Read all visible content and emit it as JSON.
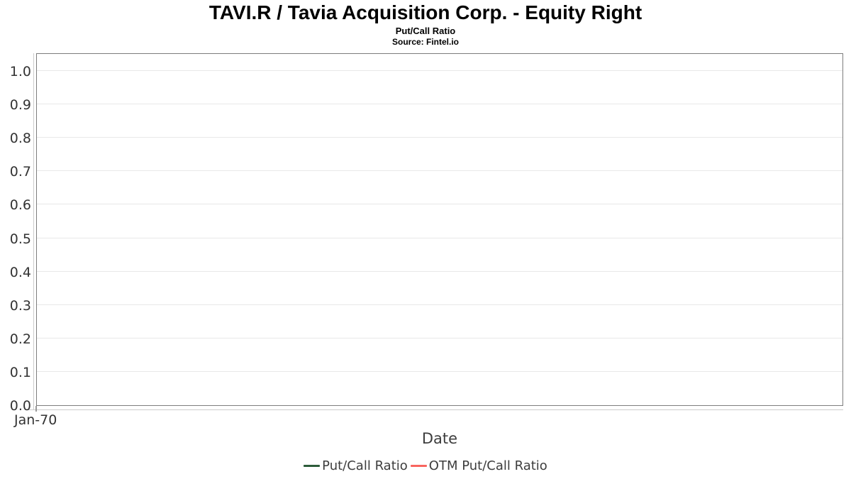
{
  "header": {
    "title": "TAVI.R / Tavia Acquisition Corp. - Equity Right",
    "subtitle": "Put/Call Ratio",
    "source": "Source: Fintel.io"
  },
  "chart_data": {
    "type": "line",
    "title": "TAVI.R / Tavia Acquisition Corp. - Equity Right",
    "subtitle": "Put/Call Ratio",
    "source_note": "Source: Fintel.io",
    "xlabel": "Date",
    "ylabel": "",
    "ylim": [
      0.0,
      1.0
    ],
    "ytick_step": 0.1,
    "yticks": [
      "1.0",
      "0.9",
      "0.8",
      "0.7",
      "0.6",
      "0.5",
      "0.4",
      "0.3",
      "0.2",
      "0.1",
      "0.0"
    ],
    "xticks": [
      "Jan-70"
    ],
    "grid": true,
    "legend_position": "bottom",
    "plot_is_empty": true,
    "series": [
      {
        "name": "Put/Call Ratio",
        "color": "#2d5c3a",
        "x": [],
        "values": []
      },
      {
        "name": "OTM Put/Call Ratio",
        "color": "#f8655f",
        "x": [],
        "values": []
      }
    ]
  },
  "colors": {
    "background": "#ffffff",
    "plot_border": "#7d7d7d",
    "gridline": "#e8e8e8",
    "axis_line": "#cccccc",
    "axis_text": "#333333",
    "title_text": "#000000"
  }
}
